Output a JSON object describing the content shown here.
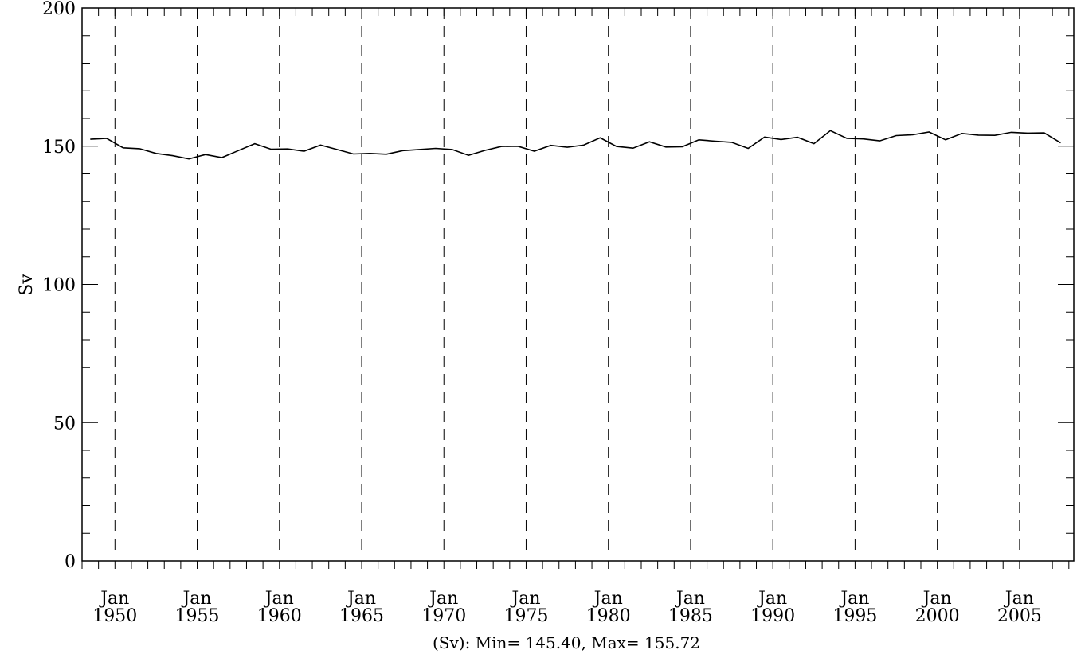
{
  "chart_data": {
    "type": "line",
    "title": "",
    "ylabel": "Sv",
    "xlabel": "",
    "footer": "(Sv): Min= 145.40, Max= 155.72",
    "ylim": [
      0,
      200
    ],
    "yticks": [
      0,
      50,
      100,
      150,
      200
    ],
    "xlim": [
      1948.0,
      2008.3
    ],
    "x_tick_labels": [
      {
        "year": 1950,
        "month": "Jan",
        "label_year": "1950"
      },
      {
        "year": 1955,
        "month": "Jan",
        "label_year": "1955"
      },
      {
        "year": 1960,
        "month": "Jan",
        "label_year": "1960"
      },
      {
        "year": 1965,
        "month": "Jan",
        "label_year": "1965"
      },
      {
        "year": 1970,
        "month": "Jan",
        "label_year": "1970"
      },
      {
        "year": 1975,
        "month": "Jan",
        "label_year": "1975"
      },
      {
        "year": 1980,
        "month": "Jan",
        "label_year": "1980"
      },
      {
        "year": 1985,
        "month": "Jan",
        "label_year": "1985"
      },
      {
        "year": 1990,
        "month": "Jan",
        "label_year": "1990"
      },
      {
        "year": 1995,
        "month": "Jan",
        "label_year": "1995"
      },
      {
        "year": 2000,
        "month": "Jan",
        "label_year": "2000"
      },
      {
        "year": 2005,
        "month": "Jan",
        "label_year": "2005"
      }
    ],
    "grid": "dashed vertical lines at each Jan label",
    "series": [
      {
        "color": "#000000",
        "x": [
          1948.5,
          1949.5,
          1950.5,
          1951.5,
          1952.5,
          1953.5,
          1954.5,
          1955.5,
          1956.5,
          1957.5,
          1958.5,
          1959.5,
          1960.5,
          1961.5,
          1962.5,
          1963.5,
          1964.5,
          1965.5,
          1966.5,
          1967.5,
          1968.5,
          1969.5,
          1970.5,
          1971.5,
          1972.5,
          1973.5,
          1974.5,
          1975.5,
          1976.5,
          1977.5,
          1978.5,
          1979.5,
          1980.5,
          1981.5,
          1982.5,
          1983.5,
          1984.5,
          1985.5,
          1986.5,
          1987.5,
          1988.5,
          1989.5,
          1990.5,
          1991.5,
          1992.5,
          1993.5,
          1994.5,
          1995.5,
          1996.5,
          1997.5,
          1998.5,
          1999.5,
          2000.5,
          2001.5,
          2002.5,
          2003.5,
          2004.5,
          2005.5,
          2006.5,
          2007.5
        ],
        "y": [
          152.5,
          152.8,
          149.4,
          149.1,
          147.4,
          146.6,
          145.4,
          147.0,
          145.9,
          148.4,
          150.9,
          148.9,
          149.0,
          148.2,
          150.4,
          148.8,
          147.2,
          147.4,
          147.1,
          148.4,
          148.8,
          149.2,
          148.8,
          146.7,
          148.5,
          149.9,
          150.0,
          148.2,
          150.3,
          149.6,
          150.4,
          153.0,
          149.9,
          149.3,
          151.6,
          149.7,
          149.8,
          152.3,
          151.8,
          151.4,
          149.2,
          153.3,
          152.4,
          153.2,
          150.9,
          155.6,
          152.8,
          152.6,
          151.9,
          153.8,
          154.1,
          155.1,
          152.3,
          154.6,
          154.0,
          153.9,
          155.0,
          154.7,
          154.8,
          151.2
        ]
      }
    ]
  }
}
